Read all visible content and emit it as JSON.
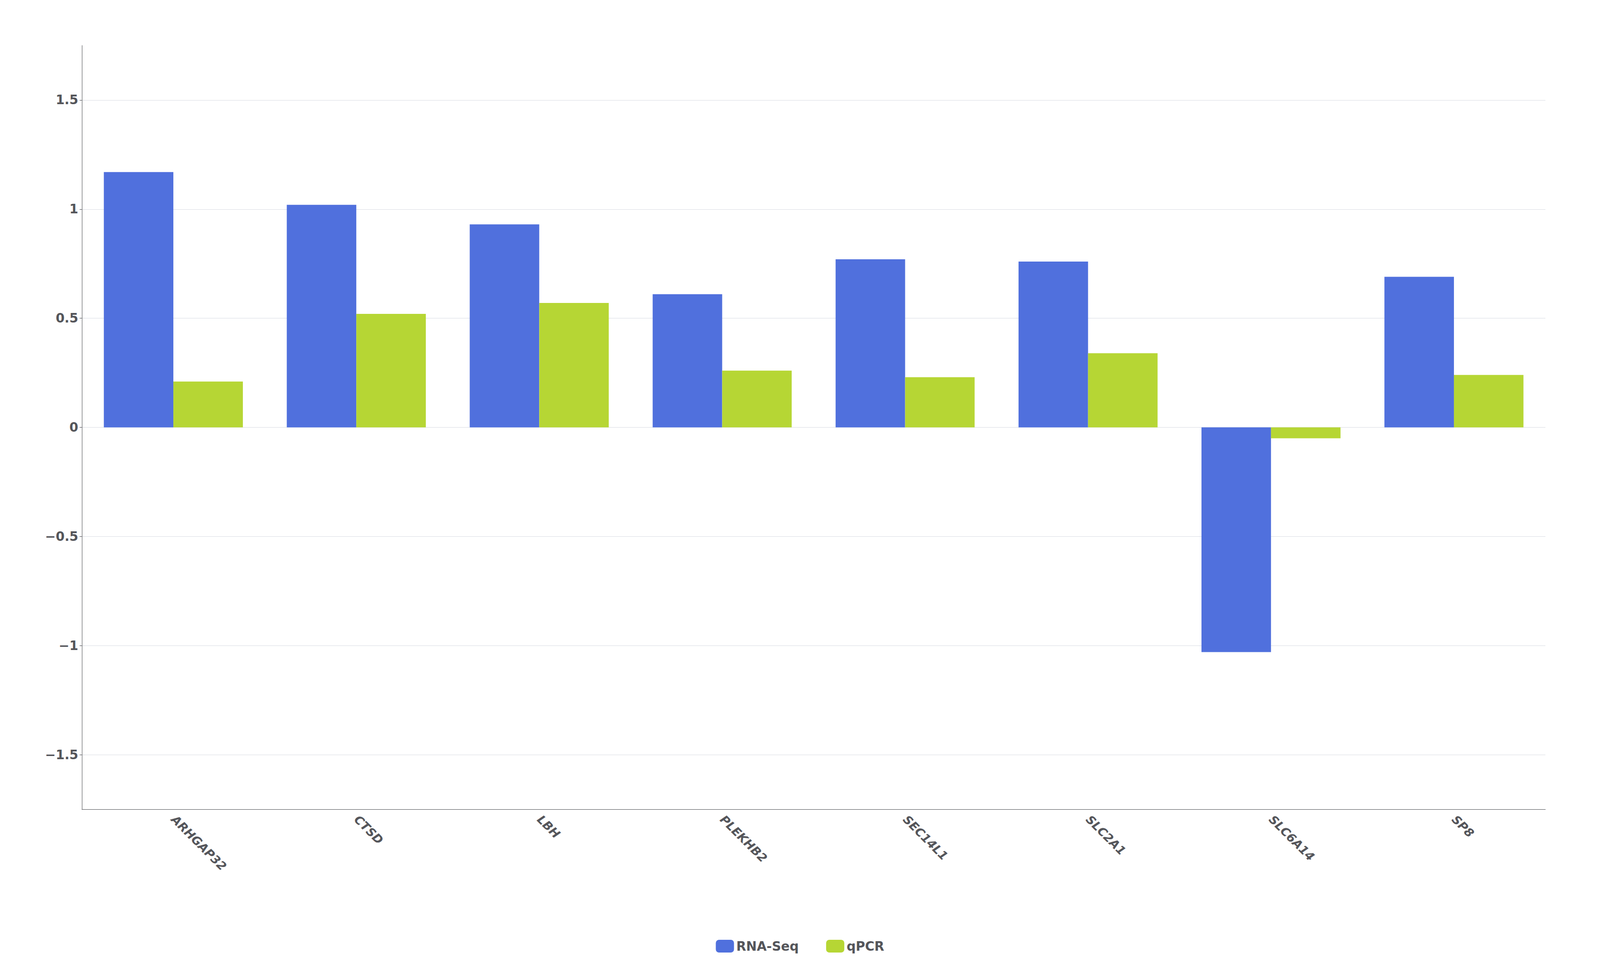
{
  "chart_data": {
    "type": "bar",
    "categories": [
      "ARHGAP32",
      "CTSD",
      "LBH",
      "PLEKHB2",
      "SEC14L1",
      "SLC2A1",
      "SLC6A14",
      "SP8"
    ],
    "series": [
      {
        "name": "RNA-Seq",
        "values": [
          1.17,
          1.02,
          0.93,
          0.61,
          0.77,
          0.76,
          -1.03,
          0.69
        ]
      },
      {
        "name": "qPCR",
        "values": [
          0.21,
          0.52,
          0.57,
          0.26,
          0.23,
          0.34,
          -0.05,
          0.24
        ]
      }
    ],
    "ylim": [
      -1.75,
      1.75
    ],
    "yticks": [
      {
        "value": -1.5,
        "label": "−1.5"
      },
      {
        "value": -1,
        "label": "−1"
      },
      {
        "value": -0.5,
        "label": "−0.5"
      },
      0,
      0.5,
      1,
      1.5
    ],
    "grid": true,
    "legend": "bottom"
  }
}
